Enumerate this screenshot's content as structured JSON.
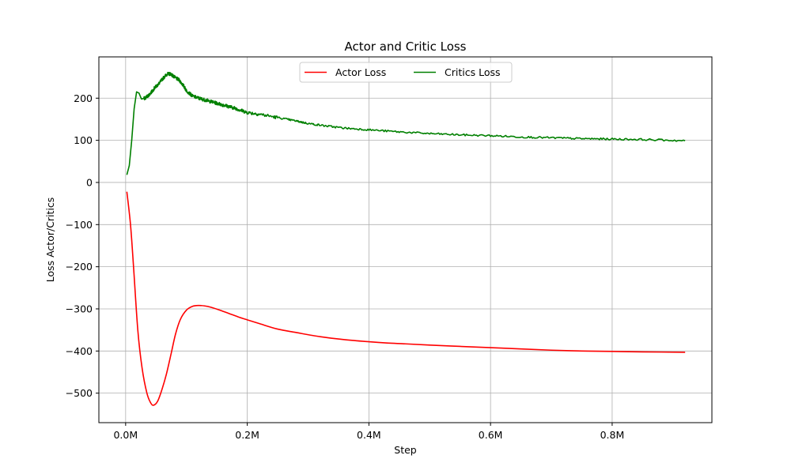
{
  "chart_data": {
    "type": "line",
    "title": "Actor and Critic Loss",
    "xlabel": "Step",
    "ylabel": "Loss Actor/Critics",
    "xlim": [
      -0.044,
      0.964
    ],
    "ylim": [
      -570,
      298
    ],
    "xticks": [
      0.0,
      0.2,
      0.4,
      0.6,
      0.8
    ],
    "xtick_labels": [
      "0.0M",
      "0.2M",
      "0.4M",
      "0.6M",
      "0.8M"
    ],
    "yticks": [
      200,
      100,
      0,
      -100,
      -200,
      -300,
      -400,
      -500
    ],
    "ytick_labels": [
      "200",
      "100",
      "0",
      "−100",
      "−200",
      "−300",
      "−400",
      "−500"
    ],
    "grid": true,
    "legend": {
      "placement": "upper center",
      "ncol": 2
    },
    "series": [
      {
        "name": "Actor Loss",
        "color": "#ff0000",
        "x": [
          0.002,
          0.008,
          0.013,
          0.02,
          0.027,
          0.035,
          0.042,
          0.047,
          0.053,
          0.06,
          0.067,
          0.075,
          0.082,
          0.09,
          0.1,
          0.11,
          0.12,
          0.13,
          0.14,
          0.155,
          0.17,
          0.185,
          0.2,
          0.22,
          0.25,
          0.28,
          0.32,
          0.36,
          0.4,
          0.43,
          0.46,
          0.5,
          0.55,
          0.6,
          0.65,
          0.7,
          0.75,
          0.8,
          0.85,
          0.92
        ],
        "y": [
          -22,
          -100,
          -200,
          -350,
          -440,
          -500,
          -525,
          -528,
          -518,
          -490,
          -455,
          -405,
          -360,
          -325,
          -303,
          -294,
          -292,
          -293,
          -296,
          -303,
          -311,
          -319,
          -326,
          -335,
          -348,
          -356,
          -366,
          -373,
          -378,
          -381,
          -383,
          -386,
          -389,
          -392,
          -395,
          -398,
          -400,
          -401,
          -402,
          -403
        ]
      },
      {
        "name": "Critics Loss",
        "color": "#008000",
        "x": [
          0.002,
          0.006,
          0.01,
          0.014,
          0.018,
          0.022,
          0.026,
          0.032,
          0.04,
          0.048,
          0.055,
          0.062,
          0.068,
          0.074,
          0.08,
          0.088,
          0.095,
          0.1,
          0.11,
          0.12,
          0.13,
          0.14,
          0.15,
          0.16,
          0.17,
          0.18,
          0.19,
          0.2,
          0.22,
          0.25,
          0.28,
          0.3,
          0.33,
          0.36,
          0.4,
          0.45,
          0.5,
          0.55,
          0.6,
          0.65,
          0.7,
          0.75,
          0.8,
          0.85,
          0.92
        ],
        "y": [
          18,
          40,
          100,
          175,
          215,
          212,
          198,
          200,
          210,
          225,
          235,
          248,
          257,
          258,
          250,
          243,
          230,
          218,
          205,
          200,
          196,
          192,
          188,
          184,
          180,
          176,
          171,
          166,
          162,
          154,
          146,
          140,
          134,
          129,
          125,
          120,
          116,
          113,
          111,
          108,
          106,
          104,
          103,
          102,
          99
        ]
      }
    ]
  }
}
